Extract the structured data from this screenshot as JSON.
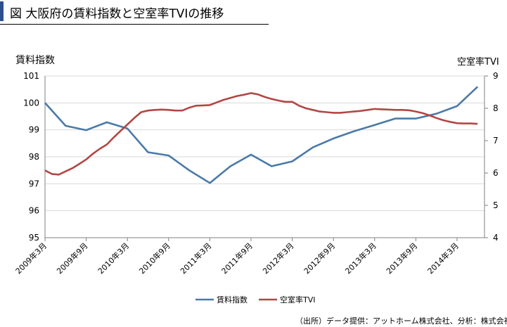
{
  "title": "図 大阪府の賃料指数と空室率TVIの推移",
  "source": "（出所）データ提供：アットホーム株式会社、分析：株式会社タス",
  "colors": {
    "rent": "#4a7aa8",
    "vacancy": "#b24744",
    "accent": "#2f4f8f"
  },
  "chart_data": {
    "type": "line",
    "y_left_label": "賃料指数",
    "y_right_label": "空室率TVI",
    "y_left_range": [
      95,
      101
    ],
    "y_left_ticks": [
      95,
      96,
      97,
      98,
      99,
      100,
      101
    ],
    "y_right_range": [
      4,
      9
    ],
    "y_right_ticks": [
      4,
      5,
      6,
      7,
      8,
      9
    ],
    "grid": true,
    "legend_position": "bottom",
    "x_tick_labels": [
      "2009年3月",
      "2009年9月",
      "2010年3月",
      "2010年9月",
      "2011年3月",
      "2011年9月",
      "2012年3月",
      "2012年9月",
      "2013年3月",
      "2013年9月",
      "2014年3月"
    ],
    "series": [
      {
        "name": "賃料指数",
        "axis": "left",
        "points": [
          [
            0,
            100.0
          ],
          [
            3,
            99.15
          ],
          [
            6,
            98.99
          ],
          [
            9,
            99.28
          ],
          [
            12,
            99.05
          ],
          [
            15,
            98.17
          ],
          [
            18,
            98.05
          ],
          [
            21,
            97.5
          ],
          [
            24,
            97.03
          ],
          [
            27,
            97.65
          ],
          [
            30,
            98.08
          ],
          [
            33,
            97.65
          ],
          [
            36,
            97.83
          ],
          [
            39,
            98.35
          ],
          [
            42,
            98.68
          ],
          [
            45,
            98.95
          ],
          [
            48,
            99.18
          ],
          [
            51,
            99.42
          ],
          [
            54,
            99.42
          ],
          [
            57,
            99.6
          ],
          [
            60,
            99.88
          ],
          [
            63,
            100.6
          ]
        ]
      },
      {
        "name": "空室率TVI",
        "axis": "right",
        "values": [
          6.08,
          5.97,
          5.95,
          6.05,
          6.15,
          6.28,
          6.42,
          6.6,
          6.75,
          6.88,
          7.1,
          7.3,
          7.5,
          7.7,
          7.88,
          7.93,
          7.95,
          7.96,
          7.95,
          7.93,
          7.93,
          8.02,
          8.08,
          8.09,
          8.1,
          8.18,
          8.26,
          8.32,
          8.38,
          8.42,
          8.47,
          8.43,
          8.35,
          8.29,
          8.24,
          8.2,
          8.2,
          8.08,
          8.0,
          7.95,
          7.9,
          7.88,
          7.86,
          7.86,
          7.88,
          7.9,
          7.92,
          7.95,
          7.98,
          7.97,
          7.96,
          7.95,
          7.95,
          7.94,
          7.9,
          7.85,
          7.78,
          7.7,
          7.63,
          7.58,
          7.54,
          7.53,
          7.53,
          7.52
        ]
      }
    ]
  }
}
